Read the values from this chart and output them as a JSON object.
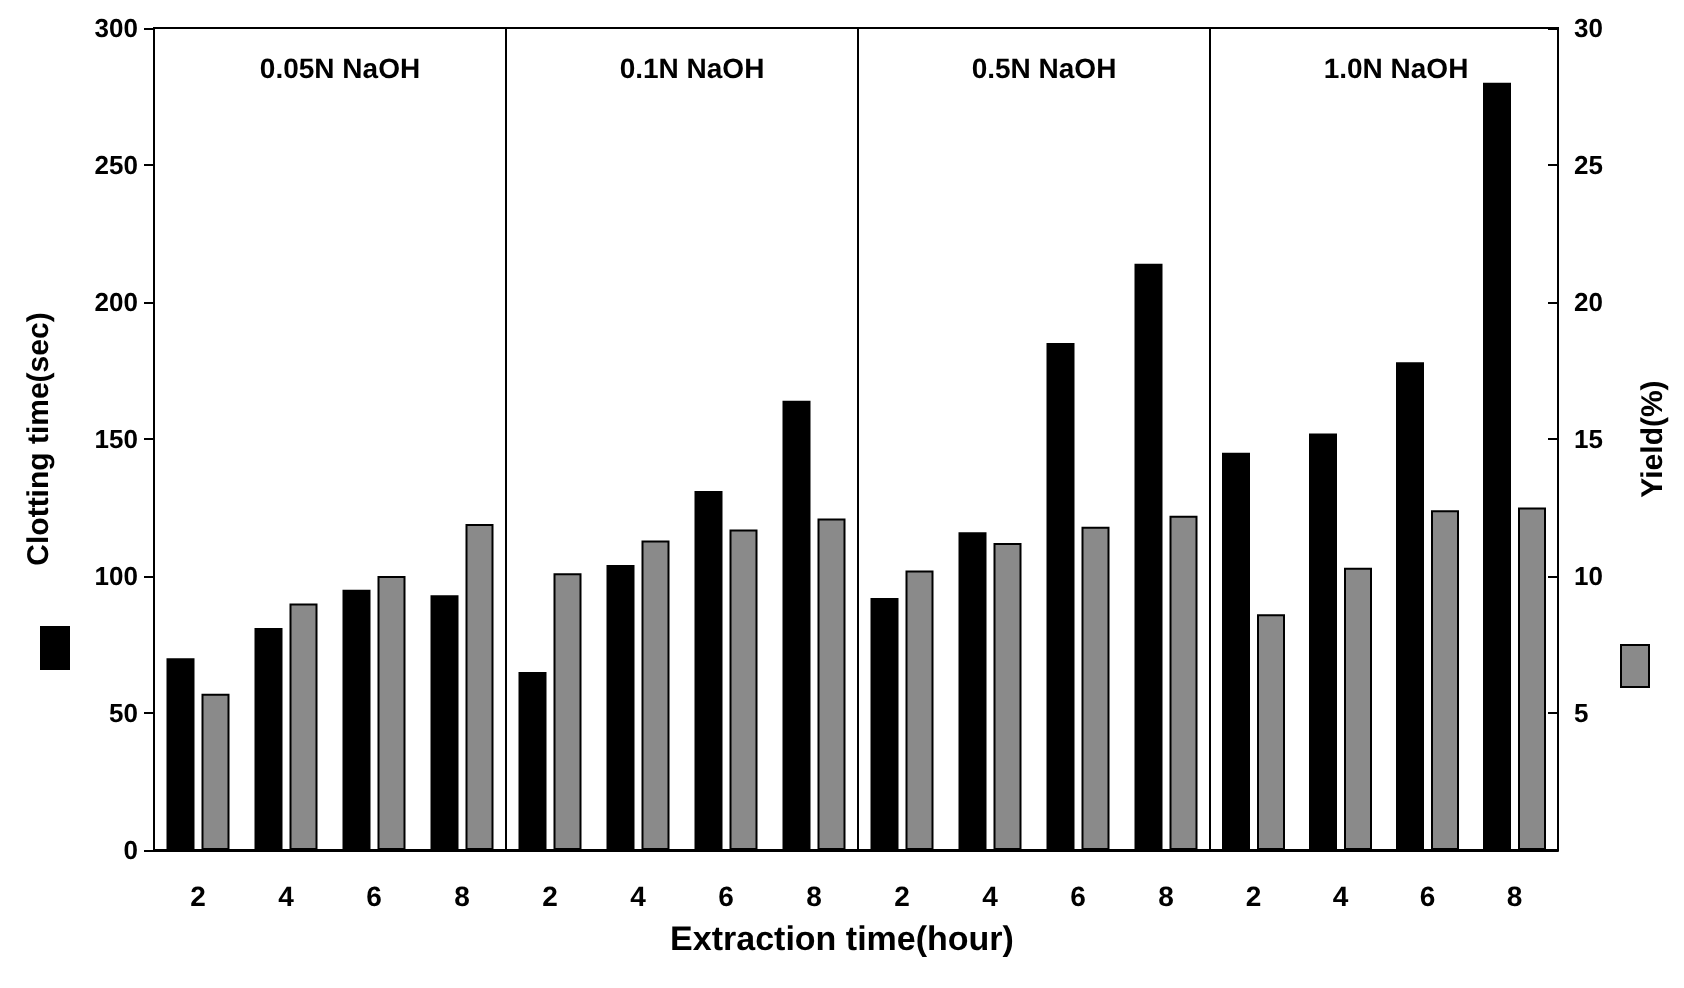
{
  "chart_data": [
    {
      "type": "bar",
      "title": "0.05N NaOH",
      "categories": [
        "2",
        "4",
        "6",
        "8"
      ],
      "ylabel": "Clotting time(sec)",
      "ylim": [
        0,
        300
      ],
      "yticks": [
        0,
        50,
        100,
        150,
        200,
        250,
        300
      ],
      "y2lim": [
        0,
        30
      ],
      "tick_labels": "xy",
      "grid": false,
      "series": [
        {
          "color": "#000000",
          "values": [
            70,
            81,
            95,
            93
          ]
        },
        {
          "color": "#8a8a8a",
          "axis": "y2",
          "values": [
            5.7,
            9.0,
            10.0,
            11.9
          ]
        }
      ]
    },
    {
      "type": "bar",
      "title": "0.1N NaOH",
      "categories": [
        "2",
        "4",
        "6",
        "8"
      ],
      "xlabel": "Extraction time(hour)",
      "ylim": [
        0,
        300
      ],
      "y2lim": [
        0,
        30
      ],
      "tick_labels": "x",
      "grid": false,
      "series": [
        {
          "color": "#000000",
          "values": [
            65,
            104,
            131,
            164
          ]
        },
        {
          "color": "#8a8a8a",
          "axis": "y2",
          "values": [
            10.1,
            11.3,
            11.7,
            12.1
          ]
        }
      ]
    },
    {
      "type": "bar",
      "title": "0.5N NaOH",
      "categories": [
        "2",
        "4",
        "6",
        "8"
      ],
      "ylim": [
        0,
        300
      ],
      "y2lim": [
        0,
        30
      ],
      "tick_labels": "x",
      "grid": false,
      "series": [
        {
          "color": "#000000",
          "values": [
            92,
            116,
            185,
            214
          ]
        },
        {
          "color": "#8a8a8a",
          "axis": "y2",
          "values": [
            10.2,
            11.2,
            11.8,
            12.2
          ]
        }
      ]
    },
    {
      "type": "bar",
      "title": "1.0N NaOH",
      "categories": [
        "2",
        "4",
        "6",
        "8"
      ],
      "y2label": "Yield(%)",
      "ylim": [
        0,
        300
      ],
      "y2lim": [
        0,
        30
      ],
      "y2ticks": [
        5,
        10,
        15,
        20,
        25,
        30
      ],
      "tick_labels": "xy2",
      "grid": false,
      "series": [
        {
          "color": "#000000",
          "values": [
            145,
            152,
            178,
            280
          ]
        },
        {
          "color": "#8a8a8a",
          "axis": "y2",
          "values": [
            8.6,
            10.3,
            12.4,
            12.5
          ]
        }
      ]
    }
  ]
}
